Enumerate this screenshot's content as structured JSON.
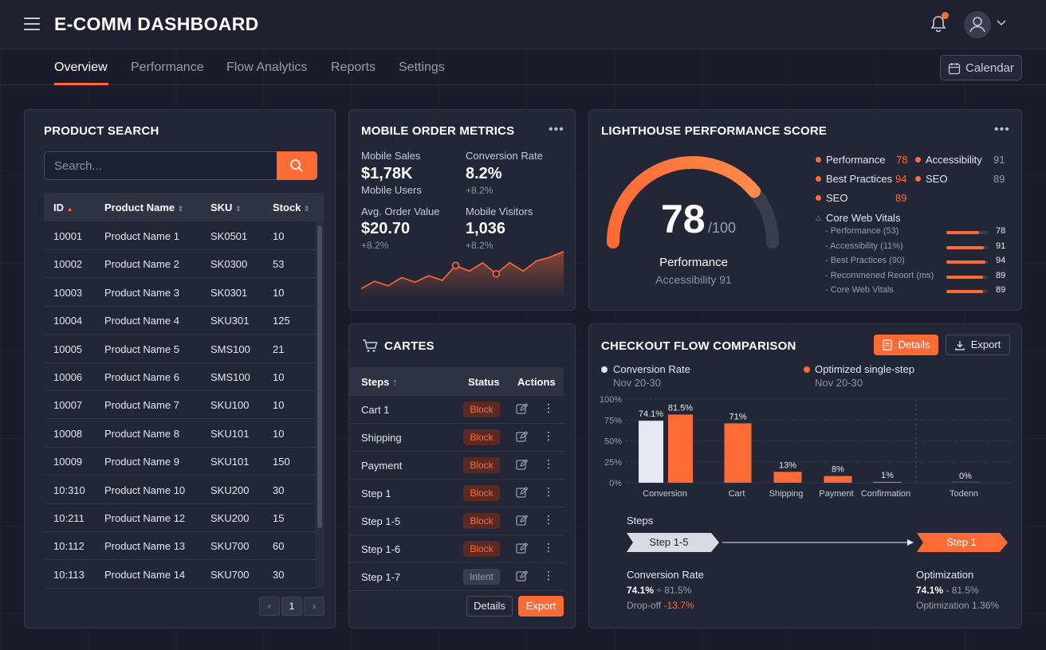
{
  "header": {
    "title": "E-COMM DASHBOARD"
  },
  "nav": {
    "tabs": [
      {
        "label": "Overview"
      },
      {
        "label": "Performance"
      },
      {
        "label": "Flow Analytics"
      },
      {
        "label": "Reports"
      },
      {
        "label": "Settings"
      }
    ],
    "calendar_label": "Calendar"
  },
  "product_search": {
    "title": "PRODUCT SEARCH",
    "placeholder": "Search...",
    "columns": [
      "ID",
      "Product Name",
      "SKU",
      "Stock"
    ],
    "rows": [
      [
        "10001",
        "Product Name 1",
        "SK0501",
        "10"
      ],
      [
        "10002",
        "Product Name 2",
        "SK0300",
        "53"
      ],
      [
        "10003",
        "Product Name 3",
        "SK0301",
        "10"
      ],
      [
        "10004",
        "Product Name 4",
        "SKU301",
        "125"
      ],
      [
        "10005",
        "Product Name 5",
        "SMS100",
        "21"
      ],
      [
        "10006",
        "Product Name 6",
        "SMS100",
        "10"
      ],
      [
        "10007",
        "Product Name 7",
        "SKU100",
        "10"
      ],
      [
        "10008",
        "Product Name 8",
        "SKU101",
        "10"
      ],
      [
        "10009",
        "Product Name 9",
        "SKU101",
        "150"
      ],
      [
        "10:310",
        "Product Name 10",
        "SKU200",
        "30"
      ],
      [
        "10:211",
        "Product Name 12",
        "SKU200",
        "15"
      ],
      [
        "10:112",
        "Product Name 13",
        "SKU700",
        "60"
      ],
      [
        "10:113",
        "Product Name 14",
        "SKU700",
        "30"
      ]
    ],
    "page": "1",
    "prev_icon": "‹",
    "next_icon": "›"
  },
  "mobile_metrics": {
    "title": "MOBILE ORDER METRICS",
    "more": "•••",
    "items": [
      {
        "label": "Mobile Sales",
        "value": "$1,78K",
        "sub": "Mobile Users"
      },
      {
        "label": "Conversion Rate",
        "value": "8.2%",
        "sub": "+8.2%"
      },
      {
        "label": "Avg. Order Value",
        "value": "$20.70",
        "sub": "+8.2%"
      },
      {
        "label": "Mobile Visitors",
        "value": "1,036",
        "sub": "+8.2%"
      }
    ],
    "sparkline": [
      30,
      38,
      33,
      42,
      37,
      44,
      39,
      55,
      49,
      58,
      46,
      58,
      49,
      60,
      64,
      70
    ]
  },
  "lighthouse": {
    "title": "LIGHTHOUSE PERFORMANCE SCORE",
    "more": "•••",
    "score": "78",
    "score_max": "/100",
    "score_fraction": 0.78,
    "caption": "Performance",
    "sub_caption": "Accessibility 91",
    "legend": [
      {
        "label": "Performance",
        "value": "78"
      },
      {
        "label": "Accessibility",
        "value": "91"
      },
      {
        "label": "Best Practices",
        "value": "94"
      },
      {
        "label": "SEO",
        "value": "89"
      },
      {
        "label": "SEO",
        "value": "89"
      }
    ],
    "cwv_title": "Core Web Vitals",
    "cwv": [
      {
        "label": "- Performance (53)",
        "value": "78",
        "fraction": 0.78
      },
      {
        "label": "- Accessibility (11%)",
        "value": "91",
        "fraction": 0.91
      },
      {
        "label": "- Best Practices (90)",
        "value": "94",
        "fraction": 0.94
      },
      {
        "label": "- Recommened Reoort (ms)",
        "value": "89",
        "fraction": 0.89
      },
      {
        "label": "- Core Web Vitals",
        "value": "89",
        "fraction": 0.89
      }
    ]
  },
  "cartes": {
    "title": "CARTES",
    "columns": {
      "steps": "Steps",
      "status": "Status",
      "actions": "Actions"
    },
    "rows": [
      {
        "step": "Cart 1",
        "status": "Block"
      },
      {
        "step": "Shipping",
        "status": "Block"
      },
      {
        "step": "Payment",
        "status": "Block"
      },
      {
        "step": "Step 1",
        "status": "Block"
      },
      {
        "step": "Step 1-5",
        "status": "Block"
      },
      {
        "step": "Step 1-6",
        "status": "Block"
      },
      {
        "step": "Step 1-7",
        "status": "Intent"
      }
    ],
    "more": "⋮",
    "details_label": "Details",
    "export_label": "Export"
  },
  "checkout": {
    "title": "CHECKOUT FLOW COMPARISON",
    "details_label": "Details",
    "export_label": "Export",
    "legend": [
      {
        "label": "Conversion Rate",
        "sub": "Nov 20-30",
        "color": "#e6e8ef"
      },
      {
        "label": "Optimized single-step",
        "sub": "Nov 20-30",
        "color": "#ff6b35"
      }
    ],
    "steps_label": "Steps",
    "step_from": "Step 1-5",
    "step_to": "Step 1",
    "summary": {
      "left_title": "Conversion Rate",
      "left_line1_bold": "74.1%",
      "left_line1_rest": " ÷ 81.5%",
      "left_line2_label": "Drop-off ",
      "left_line2_value": "-13.7%",
      "right_title": "Optimization",
      "right_line1_bold": "74.1%",
      "right_line1_rest": " - 81.5%",
      "right_line2": "Optimization 1.36%"
    }
  },
  "chart_data": {
    "type": "bar",
    "categories": [
      "Conversion",
      "Cart",
      "Shipping",
      "Payment",
      "Confirmation",
      "Todenn"
    ],
    "series": [
      {
        "name": "Conversion Rate",
        "values": [
          74.1,
          null,
          null,
          null,
          null,
          null
        ],
        "labels": [
          "74.1%",
          "",
          "",
          "",
          "",
          ""
        ],
        "color": "#e6e8ef"
      },
      {
        "name": "Optimized single-step",
        "values": [
          81.5,
          71,
          13,
          8,
          1,
          0
        ],
        "labels": [
          "81.5%",
          "71%",
          "13%",
          "8%",
          "1%",
          "0%"
        ],
        "color": "#ff6b35"
      }
    ],
    "yticks": [
      "100%",
      "75%",
      "50%",
      "25%",
      "0%"
    ],
    "ylim": [
      0,
      100
    ],
    "grid": true,
    "legend": "top"
  }
}
